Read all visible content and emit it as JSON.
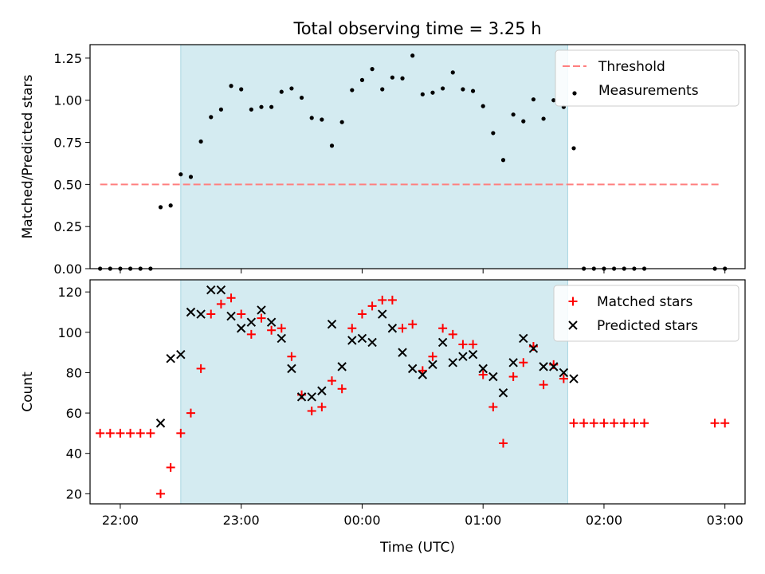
{
  "chart_data": [
    {
      "type": "scatter",
      "title": "Total observing time = 3.25 h",
      "ylabel": "Matched/Predicted stars",
      "xlabel": "",
      "ylim": [
        0,
        1.33
      ],
      "yticks": [
        "0.00",
        "0.25",
        "0.50",
        "0.75",
        "1.00",
        "1.25"
      ],
      "xlim": [
        "21:45",
        "03:10"
      ],
      "observing_window": [
        "22:30",
        "01:42"
      ],
      "threshold": {
        "name": "Threshold",
        "value": 0.5,
        "x_range": [
          "21:50",
          "02:57"
        ],
        "color": "#ff7f7f"
      },
      "legend": {
        "placement": "top-right",
        "entries": [
          "Threshold",
          "Measurements"
        ]
      },
      "series": [
        {
          "name": "Measurements",
          "color": "#000000",
          "marker": "dot",
          "points": [
            [
              "21:50",
              0
            ],
            [
              "21:55",
              0
            ],
            [
              "22:00",
              0
            ],
            [
              "22:05",
              0
            ],
            [
              "22:10",
              0
            ],
            [
              "22:15",
              0
            ],
            [
              "22:20",
              0.365
            ],
            [
              "22:25",
              0.375
            ],
            [
              "22:30",
              0.56
            ],
            [
              "22:35",
              0.545
            ],
            [
              "22:40",
              0.755
            ],
            [
              "22:45",
              0.9
            ],
            [
              "22:50",
              0.945
            ],
            [
              "22:55",
              1.085
            ],
            [
              "23:00",
              1.065
            ],
            [
              "23:05",
              0.945
            ],
            [
              "23:10",
              0.96
            ],
            [
              "23:15",
              0.96
            ],
            [
              "23:20",
              1.05
            ],
            [
              "23:25",
              1.07
            ],
            [
              "23:30",
              1.015
            ],
            [
              "23:35",
              0.895
            ],
            [
              "23:40",
              0.885
            ],
            [
              "23:45",
              0.73
            ],
            [
              "23:50",
              0.87
            ],
            [
              "23:55",
              1.06
            ],
            [
              "00:00",
              1.12
            ],
            [
              "00:05",
              1.185
            ],
            [
              "00:10",
              1.065
            ],
            [
              "00:15",
              1.135
            ],
            [
              "00:20",
              1.13
            ],
            [
              "00:25",
              1.265
            ],
            [
              "00:30",
              1.035
            ],
            [
              "00:35",
              1.045
            ],
            [
              "00:40",
              1.07
            ],
            [
              "00:45",
              1.165
            ],
            [
              "00:50",
              1.065
            ],
            [
              "00:55",
              1.055
            ],
            [
              "01:00",
              0.965
            ],
            [
              "01:05",
              0.805
            ],
            [
              "01:10",
              0.645
            ],
            [
              "01:15",
              0.915
            ],
            [
              "01:20",
              0.875
            ],
            [
              "01:25",
              1.005
            ],
            [
              "01:30",
              0.89
            ],
            [
              "01:35",
              1.0
            ],
            [
              "01:40",
              0.96
            ],
            [
              "01:45",
              0.715
            ],
            [
              "01:50",
              0
            ],
            [
              "01:55",
              0
            ],
            [
              "02:00",
              0
            ],
            [
              "02:05",
              0
            ],
            [
              "02:10",
              0
            ],
            [
              "02:15",
              0
            ],
            [
              "02:20",
              0
            ],
            [
              "02:55",
              0
            ],
            [
              "03:00",
              0
            ]
          ]
        }
      ]
    },
    {
      "type": "scatter",
      "title": "",
      "ylabel": "Count",
      "xlabel": "Time (UTC)",
      "ylim": [
        15,
        126
      ],
      "yticks": [
        "20",
        "40",
        "60",
        "80",
        "100",
        "120"
      ],
      "xlim": [
        "21:45",
        "03:10"
      ],
      "xticks": [
        "22:00",
        "23:00",
        "00:00",
        "01:00",
        "02:00",
        "03:00"
      ],
      "observing_window": [
        "22:30",
        "01:42"
      ],
      "legend": {
        "placement": "top-right",
        "entries": [
          "Matched stars",
          "Predicted stars"
        ]
      },
      "series": [
        {
          "name": "Matched stars",
          "color": "#ff0000",
          "marker": "plus",
          "points": [
            [
              "21:50",
              50
            ],
            [
              "21:55",
              50
            ],
            [
              "22:00",
              50
            ],
            [
              "22:05",
              50
            ],
            [
              "22:10",
              50
            ],
            [
              "22:15",
              50
            ],
            [
              "22:20",
              20
            ],
            [
              "22:25",
              33
            ],
            [
              "22:30",
              50
            ],
            [
              "22:35",
              60
            ],
            [
              "22:40",
              82
            ],
            [
              "22:45",
              109
            ],
            [
              "22:50",
              114
            ],
            [
              "22:55",
              117
            ],
            [
              "23:00",
              109
            ],
            [
              "23:05",
              99
            ],
            [
              "23:10",
              107
            ],
            [
              "23:15",
              101
            ],
            [
              "23:20",
              102
            ],
            [
              "23:25",
              88
            ],
            [
              "23:30",
              69
            ],
            [
              "23:35",
              61
            ],
            [
              "23:40",
              63
            ],
            [
              "23:45",
              76
            ],
            [
              "23:50",
              72
            ],
            [
              "23:55",
              102
            ],
            [
              "00:00",
              109
            ],
            [
              "00:05",
              113
            ],
            [
              "00:10",
              116
            ],
            [
              "00:15",
              116
            ],
            [
              "00:20",
              102
            ],
            [
              "00:25",
              104
            ],
            [
              "00:30",
              81
            ],
            [
              "00:35",
              88
            ],
            [
              "00:40",
              102
            ],
            [
              "00:45",
              99
            ],
            [
              "00:50",
              94
            ],
            [
              "00:55",
              94
            ],
            [
              "01:00",
              79
            ],
            [
              "01:05",
              63
            ],
            [
              "01:10",
              45
            ],
            [
              "01:15",
              78
            ],
            [
              "01:20",
              85
            ],
            [
              "01:25",
              93
            ],
            [
              "01:30",
              74
            ],
            [
              "01:35",
              84
            ],
            [
              "01:40",
              77
            ],
            [
              "01:45",
              55
            ],
            [
              "01:50",
              55
            ],
            [
              "01:55",
              55
            ],
            [
              "02:00",
              55
            ],
            [
              "02:05",
              55
            ],
            [
              "02:10",
              55
            ],
            [
              "02:15",
              55
            ],
            [
              "02:20",
              55
            ],
            [
              "02:55",
              55
            ],
            [
              "03:00",
              55
            ]
          ]
        },
        {
          "name": "Predicted stars",
          "color": "#000000",
          "marker": "x",
          "points": [
            [
              "22:20",
              55
            ],
            [
              "22:25",
              87
            ],
            [
              "22:30",
              89
            ],
            [
              "22:35",
              110
            ],
            [
              "22:40",
              109
            ],
            [
              "22:45",
              121
            ],
            [
              "22:50",
              121
            ],
            [
              "22:55",
              108
            ],
            [
              "23:00",
              102
            ],
            [
              "23:05",
              105
            ],
            [
              "23:10",
              111
            ],
            [
              "23:15",
              105
            ],
            [
              "23:20",
              97
            ],
            [
              "23:25",
              82
            ],
            [
              "23:30",
              68
            ],
            [
              "23:35",
              68
            ],
            [
              "23:40",
              71
            ],
            [
              "23:45",
              104
            ],
            [
              "23:50",
              83
            ],
            [
              "23:55",
              96
            ],
            [
              "00:00",
              97
            ],
            [
              "00:05",
              95
            ],
            [
              "00:10",
              109
            ],
            [
              "00:15",
              102
            ],
            [
              "00:20",
              90
            ],
            [
              "00:25",
              82
            ],
            [
              "00:30",
              79
            ],
            [
              "00:35",
              84
            ],
            [
              "00:40",
              95
            ],
            [
              "00:45",
              85
            ],
            [
              "00:50",
              88
            ],
            [
              "00:55",
              89
            ],
            [
              "01:00",
              82
            ],
            [
              "01:05",
              78
            ],
            [
              "01:10",
              70
            ],
            [
              "01:15",
              85
            ],
            [
              "01:20",
              97
            ],
            [
              "01:25",
              92
            ],
            [
              "01:30",
              83
            ],
            [
              "01:35",
              83
            ],
            [
              "01:40",
              80
            ],
            [
              "01:45",
              77
            ]
          ]
        }
      ]
    }
  ],
  "colors": {
    "window": "#d4ebf1",
    "window_edge": "#a9d6e2",
    "axes": "#000000"
  }
}
